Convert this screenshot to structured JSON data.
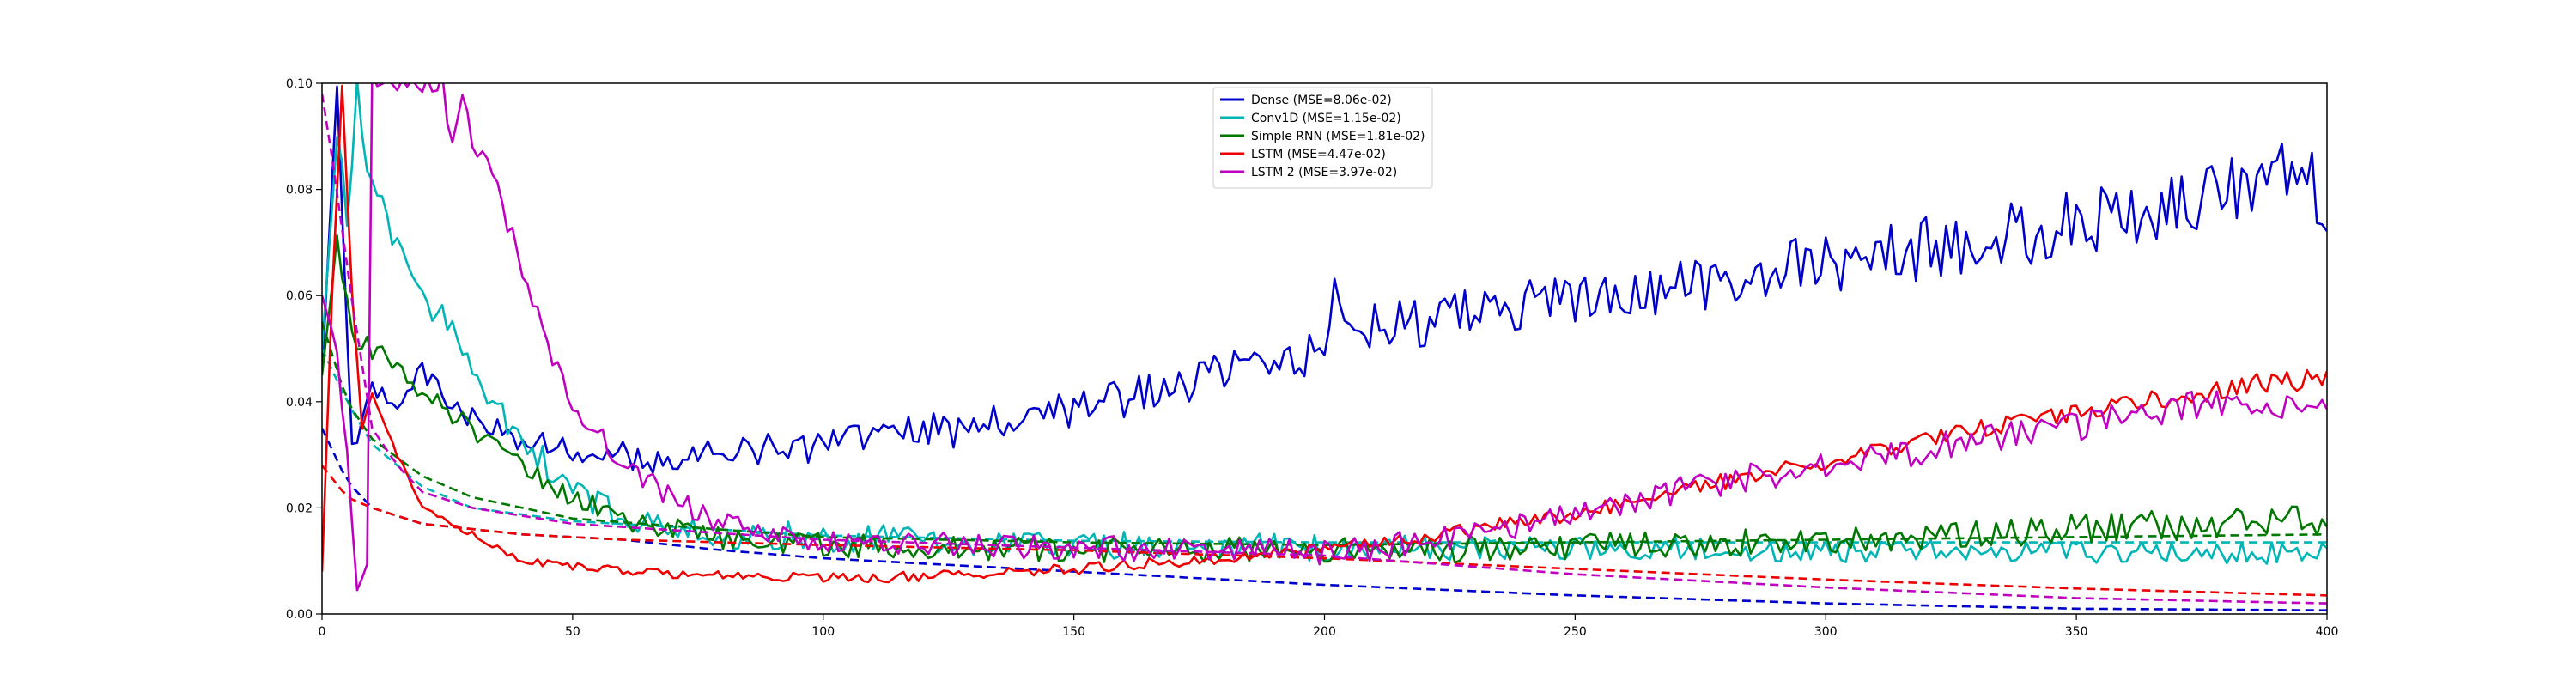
{
  "chart_data": {
    "type": "line",
    "title": "",
    "xlabel": "",
    "ylabel": "",
    "xlim": [
      0,
      400
    ],
    "ylim": [
      0,
      0.1
    ],
    "x_ticks": [
      "0",
      "50",
      "100",
      "150",
      "200",
      "250",
      "300",
      "350",
      "400"
    ],
    "y_ticks": [
      "0.00",
      "0.02",
      "0.04",
      "0.06",
      "0.08",
      "0.10"
    ],
    "grid": false,
    "legend_position": "top-center",
    "line_styles": {
      "validation": "solid",
      "training": "dashed"
    },
    "series": [
      {
        "name": "Dense (MSE=8.06e-02)",
        "color": "#0000cc",
        "validation_points": [
          [
            0,
            0.045
          ],
          [
            3,
            0.1
          ],
          [
            6,
            0.03
          ],
          [
            10,
            0.042
          ],
          [
            15,
            0.04
          ],
          [
            20,
            0.046
          ],
          [
            25,
            0.04
          ],
          [
            30,
            0.037
          ],
          [
            40,
            0.033
          ],
          [
            50,
            0.031
          ],
          [
            60,
            0.03
          ],
          [
            70,
            0.029
          ],
          [
            80,
            0.03
          ],
          [
            90,
            0.031
          ],
          [
            100,
            0.032
          ],
          [
            120,
            0.034
          ],
          [
            140,
            0.037
          ],
          [
            160,
            0.041
          ],
          [
            180,
            0.045
          ],
          [
            200,
            0.05
          ],
          [
            202,
            0.062
          ],
          [
            205,
            0.054
          ],
          [
            220,
            0.055
          ],
          [
            240,
            0.058
          ],
          [
            260,
            0.06
          ],
          [
            280,
            0.063
          ],
          [
            300,
            0.066
          ],
          [
            320,
            0.069
          ],
          [
            340,
            0.072
          ],
          [
            360,
            0.075
          ],
          [
            380,
            0.079
          ],
          [
            395,
            0.083
          ],
          [
            400,
            0.078
          ]
        ],
        "training_points": [
          [
            0,
            0.035
          ],
          [
            5,
            0.025
          ],
          [
            10,
            0.02
          ],
          [
            20,
            0.017
          ],
          [
            40,
            0.015
          ],
          [
            60,
            0.014
          ],
          [
            80,
            0.012
          ],
          [
            100,
            0.0105
          ],
          [
            150,
            0.008
          ],
          [
            200,
            0.0055
          ],
          [
            250,
            0.0035
          ],
          [
            300,
            0.002
          ],
          [
            350,
            0.001
          ],
          [
            400,
            0.0007
          ]
        ],
        "validation_noise": [
          0.002,
          0.007
        ]
      },
      {
        "name": "Conv1D (MSE=1.15e-02)",
        "color": "#00b5b5",
        "validation_points": [
          [
            0,
            0.05
          ],
          [
            3,
            0.09
          ],
          [
            5,
            0.075
          ],
          [
            7,
            0.098
          ],
          [
            10,
            0.08
          ],
          [
            15,
            0.07
          ],
          [
            20,
            0.06
          ],
          [
            25,
            0.055
          ],
          [
            30,
            0.045
          ],
          [
            40,
            0.033
          ],
          [
            50,
            0.023
          ],
          [
            60,
            0.019
          ],
          [
            70,
            0.016
          ],
          [
            80,
            0.015
          ],
          [
            100,
            0.0145
          ],
          [
            150,
            0.013
          ],
          [
            200,
            0.0125
          ],
          [
            250,
            0.0125
          ],
          [
            300,
            0.012
          ],
          [
            350,
            0.0115
          ],
          [
            400,
            0.0115
          ]
        ],
        "training_points": [
          [
            0,
            0.05
          ],
          [
            5,
            0.04
          ],
          [
            10,
            0.032
          ],
          [
            20,
            0.024
          ],
          [
            30,
            0.02
          ],
          [
            50,
            0.0175
          ],
          [
            100,
            0.0148
          ],
          [
            150,
            0.0138
          ],
          [
            200,
            0.0135
          ],
          [
            250,
            0.0135
          ],
          [
            300,
            0.0135
          ],
          [
            350,
            0.0135
          ],
          [
            400,
            0.0135
          ]
        ],
        "validation_noise": [
          0.003,
          0.002
        ]
      },
      {
        "name": "Simple RNN (MSE=1.81e-02)",
        "color": "#007700",
        "validation_points": [
          [
            0,
            0.045
          ],
          [
            3,
            0.07
          ],
          [
            6,
            0.052
          ],
          [
            10,
            0.05
          ],
          [
            15,
            0.047
          ],
          [
            20,
            0.042
          ],
          [
            30,
            0.035
          ],
          [
            40,
            0.028
          ],
          [
            50,
            0.022
          ],
          [
            60,
            0.018
          ],
          [
            70,
            0.016
          ],
          [
            80,
            0.014
          ],
          [
            100,
            0.013
          ],
          [
            150,
            0.012
          ],
          [
            200,
            0.012
          ],
          [
            250,
            0.0125
          ],
          [
            300,
            0.014
          ],
          [
            350,
            0.016
          ],
          [
            400,
            0.018
          ]
        ],
        "training_points": [
          [
            0,
            0.055
          ],
          [
            5,
            0.04
          ],
          [
            10,
            0.033
          ],
          [
            20,
            0.026
          ],
          [
            30,
            0.022
          ],
          [
            50,
            0.018
          ],
          [
            100,
            0.0145
          ],
          [
            150,
            0.0135
          ],
          [
            200,
            0.013
          ],
          [
            250,
            0.0135
          ],
          [
            300,
            0.014
          ],
          [
            350,
            0.0145
          ],
          [
            400,
            0.015
          ]
        ],
        "validation_noise": [
          0.002,
          0.003
        ]
      },
      {
        "name": "LSTM (MSE=4.47e-02)",
        "color": "#ee0000",
        "validation_points": [
          [
            0,
            0.008
          ],
          [
            2,
            0.06
          ],
          [
            4,
            0.1
          ],
          [
            6,
            0.06
          ],
          [
            8,
            0.035
          ],
          [
            10,
            0.042
          ],
          [
            15,
            0.03
          ],
          [
            20,
            0.02
          ],
          [
            30,
            0.015
          ],
          [
            40,
            0.01
          ],
          [
            50,
            0.009
          ],
          [
            70,
            0.0075
          ],
          [
            90,
            0.007
          ],
          [
            110,
            0.0068
          ],
          [
            130,
            0.0075
          ],
          [
            150,
            0.0085
          ],
          [
            170,
            0.01
          ],
          [
            190,
            0.0115
          ],
          [
            210,
            0.0135
          ],
          [
            230,
            0.016
          ],
          [
            250,
            0.019
          ],
          [
            270,
            0.023
          ],
          [
            290,
            0.027
          ],
          [
            310,
            0.031
          ],
          [
            330,
            0.035
          ],
          [
            350,
            0.038
          ],
          [
            370,
            0.041
          ],
          [
            390,
            0.044
          ],
          [
            400,
            0.044
          ]
        ],
        "training_points": [
          [
            0,
            0.028
          ],
          [
            5,
            0.022
          ],
          [
            10,
            0.02
          ],
          [
            20,
            0.017
          ],
          [
            40,
            0.015
          ],
          [
            60,
            0.014
          ],
          [
            80,
            0.0135
          ],
          [
            100,
            0.013
          ],
          [
            150,
            0.012
          ],
          [
            200,
            0.0105
          ],
          [
            250,
            0.0085
          ],
          [
            300,
            0.0065
          ],
          [
            350,
            0.0048
          ],
          [
            400,
            0.0035
          ]
        ],
        "validation_noise": [
          0.0005,
          0.002
        ]
      },
      {
        "name": "LSTM 2 (MSE=3.97e-02)",
        "color": "#c000c0",
        "validation_points": [
          [
            0,
            0.06
          ],
          [
            3,
            0.05
          ],
          [
            5,
            0.03
          ],
          [
            7,
            0.006
          ],
          [
            9,
            0.008
          ],
          [
            10,
            0.1
          ],
          [
            24,
            0.1
          ],
          [
            26,
            0.087
          ],
          [
            28,
            0.098
          ],
          [
            30,
            0.09
          ],
          [
            35,
            0.08
          ],
          [
            40,
            0.065
          ],
          [
            45,
            0.05
          ],
          [
            50,
            0.04
          ],
          [
            55,
            0.034
          ],
          [
            60,
            0.028
          ],
          [
            70,
            0.022
          ],
          [
            80,
            0.017
          ],
          [
            90,
            0.0145
          ],
          [
            100,
            0.014
          ],
          [
            150,
            0.0125
          ],
          [
            200,
            0.0115
          ],
          [
            220,
            0.0135
          ],
          [
            240,
            0.017
          ],
          [
            260,
            0.021
          ],
          [
            280,
            0.025
          ],
          [
            300,
            0.028
          ],
          [
            320,
            0.031
          ],
          [
            340,
            0.034
          ],
          [
            360,
            0.037
          ],
          [
            380,
            0.04
          ],
          [
            400,
            0.038
          ]
        ],
        "training_points": [
          [
            0,
            0.098
          ],
          [
            3,
            0.08
          ],
          [
            5,
            0.065
          ],
          [
            10,
            0.035
          ],
          [
            15,
            0.028
          ],
          [
            20,
            0.023
          ],
          [
            30,
            0.02
          ],
          [
            50,
            0.017
          ],
          [
            100,
            0.014
          ],
          [
            150,
            0.0125
          ],
          [
            200,
            0.011
          ],
          [
            250,
            0.0075
          ],
          [
            300,
            0.005
          ],
          [
            350,
            0.003
          ],
          [
            400,
            0.002
          ]
        ],
        "validation_noise": [
          0.002,
          0.003
        ]
      }
    ]
  }
}
